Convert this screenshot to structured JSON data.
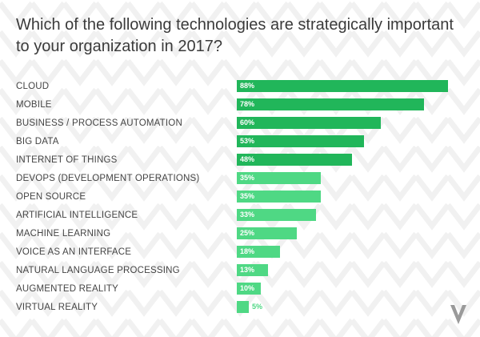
{
  "title": "Which of the following technologies are strategically important to your organization in 2017?",
  "colors": {
    "dark_green": "#21b65a",
    "light_green": "#4fd884",
    "text": "#444444",
    "logo": "#9a9a9a",
    "pattern": "#f3f3f3"
  },
  "logo_icon": "v-logo-icon",
  "chart_data": {
    "type": "bar",
    "orientation": "horizontal",
    "title": "Which of the following technologies are strategically important to your organization in 2017?",
    "xlabel": "",
    "ylabel": "",
    "xlim": [
      0,
      100
    ],
    "categories": [
      "CLOUD",
      "MOBILE",
      "BUSINESS / PROCESS AUTOMATION",
      "BIG DATA",
      "INTERNET OF THINGS",
      "DEVOPS (DEVELOPMENT OPERATIONS)",
      "OPEN SOURCE",
      "ARTIFICIAL INTELLIGENCE",
      "MACHINE LEARNING",
      "VOICE AS AN INTERFACE",
      "NATURAL LANGUAGE PROCESSING",
      "AUGMENTED REALITY",
      "VIRTUAL REALITY"
    ],
    "values": [
      88,
      78,
      60,
      53,
      48,
      35,
      35,
      33,
      25,
      18,
      13,
      10,
      5
    ],
    "value_labels": [
      "88%",
      "78%",
      "60%",
      "53%",
      "48%",
      "35%",
      "35%",
      "33%",
      "25%",
      "18%",
      "13%",
      "10%",
      "5%"
    ],
    "highlight_top_n": 5,
    "grid": false,
    "legend": "none"
  }
}
